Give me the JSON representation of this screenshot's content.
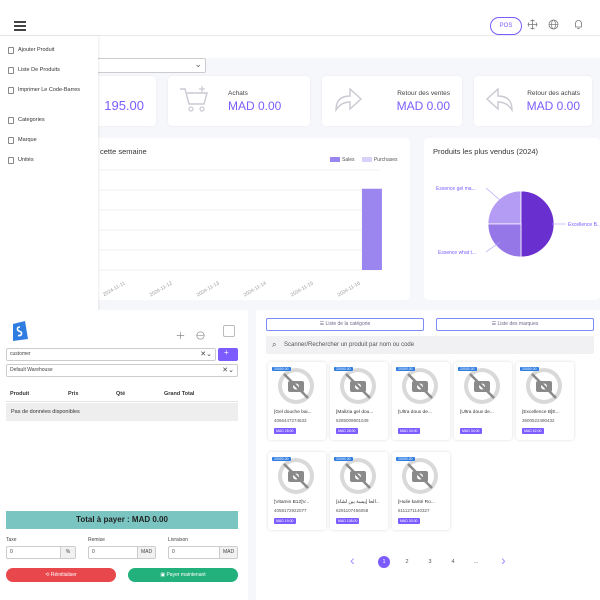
{
  "topbar": {
    "pos_label": "POS",
    "icons": [
      "menu-icon",
      "expand-icon",
      "globe-icon",
      "bell-icon"
    ]
  },
  "cards": [
    {
      "title": "",
      "value": "195.00"
    },
    {
      "title": "Achats",
      "value": "MAD 0.00"
    },
    {
      "title": "Retour des ventes",
      "value": "MAD 0.00"
    },
    {
      "title": "Retour des achats",
      "value": "MAD 0.00"
    }
  ],
  "sidebar": {
    "items": [
      {
        "label": "Ajouter Produit"
      },
      {
        "label": "Liste De Produits"
      },
      {
        "label": "Imprimer Le Code-Barres"
      },
      {
        "label": "Categories"
      },
      {
        "label": "Marque"
      },
      {
        "label": "Unités"
      }
    ]
  },
  "weekly_chart": {
    "title": "cette semaine",
    "chart_data": {
      "type": "bar",
      "categories": [
        "2024-11-11",
        "2024-11-12",
        "2024-11-13",
        "2024-11-14",
        "2024-11-15",
        "2024-11-16"
      ],
      "series": [
        {
          "name": "Sales",
          "values": [
            0,
            0,
            0,
            0,
            0,
            195
          ]
        },
        {
          "name": "Purchases",
          "values": [
            0,
            0,
            0,
            0,
            0,
            0
          ]
        }
      ],
      "ylim": [
        0,
        240
      ],
      "grid": true,
      "legend_position": "top-right",
      "colors": {
        "Sales": "#9b86ef",
        "Purchases": "#d8d2fb"
      }
    }
  },
  "pie_chart": {
    "title": "Produits les plus vendus (2024)",
    "chart_data": {
      "type": "pie",
      "labels": [
        "Essence gel ma...",
        "Excellence B...",
        "Essence what t..."
      ],
      "values": [
        25,
        50,
        25
      ],
      "colors": [
        "#b49cf5",
        "#6a2fcf",
        "#9577e8"
      ]
    },
    "label_1": "Essence gel ma...",
    "label_2": "Excellence B...",
    "label_3": "Essence what t..."
  },
  "pos": {
    "customer_value": "customer",
    "warehouse_value": "Default Warehouse",
    "table_headers": [
      "Produit",
      "Prix",
      "Qté",
      "Grand Total"
    ],
    "no_data": "Pas de données disponibles",
    "total_label": "Total à payer : MAD 0.00",
    "tax_label": "Taxe",
    "tax_value": "0",
    "tax_unit": "%",
    "discount_label": "Remise",
    "discount_value": "0",
    "discount_unit": "MAD",
    "shipping_label": "Livraison",
    "shipping_value": "0",
    "shipping_unit": "MAD",
    "reset_label": "Réinitialiser",
    "pay_label": "Payer maintenant"
  },
  "catalog": {
    "category_btn": "Liste de la catégorie",
    "brand_btn": "Liste des marques",
    "search_placeholder": "Scanner/Rechercher un produit par nom ou code",
    "products": [
      {
        "name": "[Gel douche bai...",
        "code": "4066447274633",
        "price": "MAD 28.00",
        "stock": "20000.00"
      },
      {
        "name": "[Malizia gel dou...",
        "code": "5285009901049",
        "price": "MAD 28.00",
        "stock": "20000.00"
      },
      {
        "name": "[Ultra doux de...",
        "code": "",
        "price": "MAD 34.00",
        "stock": "20000.00"
      },
      {
        "name": "[Ultra doux de...",
        "code": "",
        "price": "MAD 34.00",
        "stock": "20000.00"
      },
      {
        "name": "[Excellence B]E...",
        "code": "3600522490432",
        "price": "MAD 62.00",
        "stock": "20000.00"
      },
      {
        "name": "[Vitamin B12]V...",
        "code": "4058172922077",
        "price": "MAD 19.00",
        "stock": "20000.00"
      },
      {
        "name": "[بيسة بين لشاة] الحا...",
        "code": "6291107456058",
        "price": "MAD 108.00",
        "stock": "20000.00"
      },
      {
        "name": "[Huile karité Ro...",
        "code": "6111271140327",
        "price": "MAD 30.00",
        "stock": "20000.00"
      }
    ],
    "pages": [
      "1",
      "2",
      "3",
      "4",
      "..."
    ]
  }
}
